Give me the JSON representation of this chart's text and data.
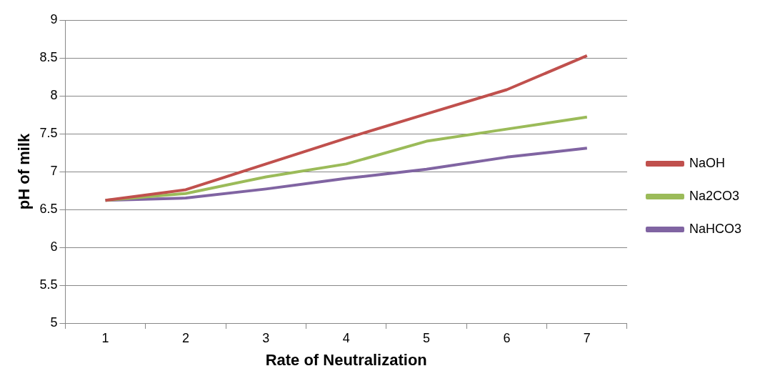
{
  "chart_data": {
    "type": "line",
    "xlabel": "Rate of Neutralization",
    "ylabel": "pH of milk",
    "categories": [
      "1",
      "2",
      "3",
      "4",
      "5",
      "6",
      "7"
    ],
    "series": [
      {
        "name": "NaOH",
        "color": "#c0504d",
        "values": [
          6.62,
          6.76,
          7.1,
          7.44,
          7.76,
          8.08,
          8.53
        ]
      },
      {
        "name": "Na2CO3",
        "color": "#9bbb59",
        "values": [
          6.62,
          6.71,
          6.93,
          7.1,
          7.4,
          7.56,
          7.72
        ]
      },
      {
        "name": "NaHCO3",
        "color": "#8064a2",
        "values": [
          6.62,
          6.65,
          6.77,
          6.91,
          7.03,
          7.19,
          7.31
        ]
      }
    ],
    "ylim": [
      5,
      9
    ],
    "yticks": [
      5,
      5.5,
      6,
      6.5,
      7,
      7.5,
      8,
      8.5,
      9
    ],
    "grid": "y",
    "legend": "right",
    "marker": "none"
  }
}
